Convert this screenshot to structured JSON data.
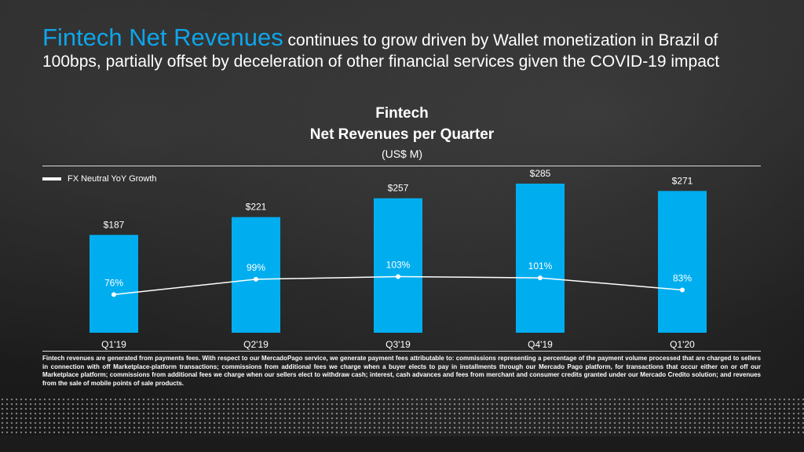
{
  "headline": {
    "accent": "Fintech Net Revenues",
    "rest": " continues to grow driven by Wallet monetization in Brazil of 100bps, partially offset by deceleration of other financial services given the COVID-19 impact"
  },
  "chart_data": {
    "type": "bar",
    "title_line1": "Fintech",
    "title_line2": "Net Revenues per Quarter",
    "subtitle": "(US$ M)",
    "categories": [
      "Q1'19",
      "Q2'19",
      "Q3'19",
      "Q4'19",
      "Q1'20"
    ],
    "values": [
      187,
      221,
      257,
      285,
      271
    ],
    "value_labels": [
      "$187",
      "$221",
      "$257",
      "$285",
      "$271"
    ],
    "bar_color": "#00aeef",
    "line_series": {
      "name": "FX Neutral YoY Growth",
      "values": [
        76,
        99,
        103,
        101,
        83
      ],
      "labels": [
        "76%",
        "99%",
        "103%",
        "101%",
        "83%"
      ],
      "color": "#ffffff"
    },
    "legend_position": "top-left",
    "grid": false
  },
  "footnote": "Fintech revenues are generated from payments fees. With respect to our MercadoPago service, we generate payment fees attributable to: commissions representing a percentage of the payment volume processed that are charged to sellers in connection with off Marketplace-platform transactions; commissions from additional fees we charge when a buyer elects to pay in installments through our Mercado Pago platform, for transactions that occur either on or off our Marketplace platform; commissions from additional fees we charge when our sellers elect to withdraw cash; interest, cash advances and fees from merchant and consumer credits granted under our Mercado Credito solution; and revenues from the sale of mobile points of sale products."
}
